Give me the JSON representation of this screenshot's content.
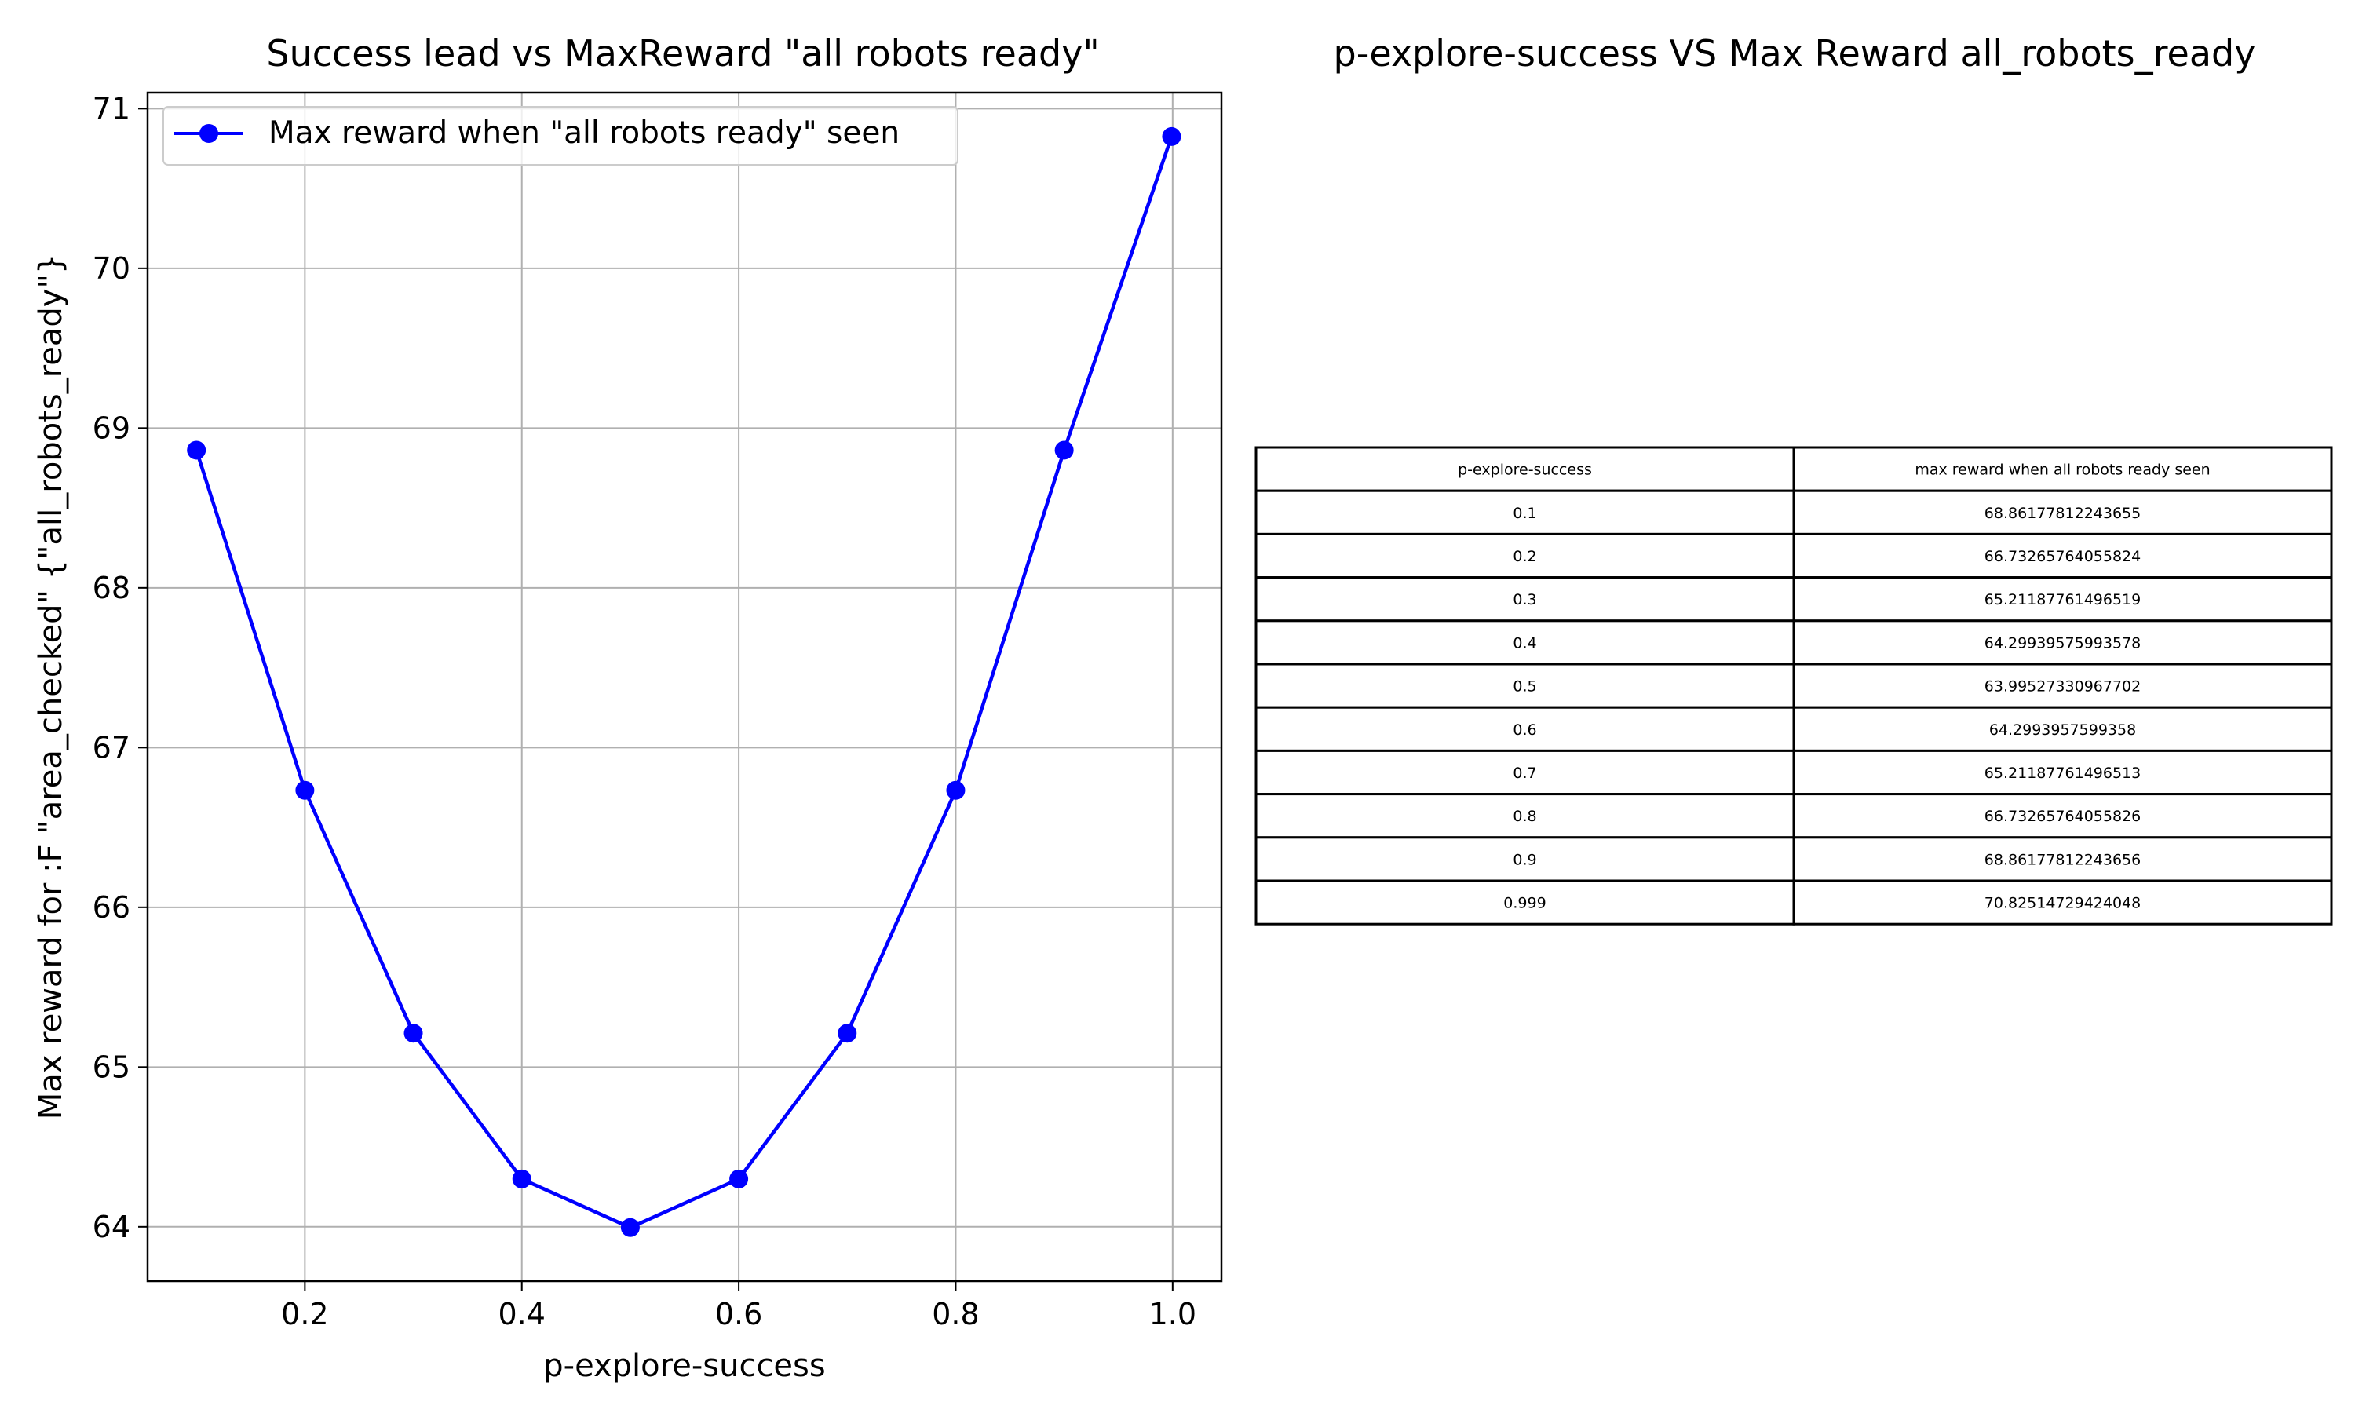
{
  "chart_data": [
    {
      "type": "line",
      "title": "Success lead vs MaxReward \"all robots ready\"",
      "xlabel": "p-explore-success",
      "ylabel": "Max reward for :F \"area_checked\" {\"all_robots_ready\"}",
      "xlim": [
        0.055,
        1.045
      ],
      "ylim": [
        63.66,
        71.1
      ],
      "xticks": [
        0.2,
        0.4,
        0.6,
        0.8,
        1.0
      ],
      "xtick_labels": [
        "0.2",
        "0.4",
        "0.6",
        "0.8",
        "1.0"
      ],
      "yticks": [
        64,
        65,
        66,
        67,
        68,
        69,
        70,
        71
      ],
      "ytick_labels": [
        "64",
        "65",
        "66",
        "67",
        "68",
        "69",
        "70",
        "71"
      ],
      "grid": true,
      "legend_position": "top-left",
      "x": [
        0.1,
        0.2,
        0.3,
        0.4,
        0.5,
        0.6,
        0.7,
        0.8,
        0.9,
        0.999
      ],
      "series": [
        {
          "name": "Max reward when \"all robots ready\" seen",
          "color": "#0000ff",
          "marker": "circle",
          "values": [
            68.86177812243655,
            66.73265764055824,
            65.21187761496519,
            64.29939575993578,
            63.99527330967702,
            64.2993957599358,
            65.21187761496513,
            66.73265764055826,
            68.86177812243656,
            70.82514729424048
          ]
        }
      ]
    },
    {
      "type": "table",
      "title": "p-explore-success VS Max Reward all_robots_ready",
      "columns": [
        "p-explore-success",
        "max reward when all robots ready seen"
      ],
      "rows": [
        [
          "0.1",
          "68.86177812243655"
        ],
        [
          "0.2",
          "66.73265764055824"
        ],
        [
          "0.3",
          "65.21187761496519"
        ],
        [
          "0.4",
          "64.29939575993578"
        ],
        [
          "0.5",
          "63.99527330967702"
        ],
        [
          "0.6",
          "64.2993957599358"
        ],
        [
          "0.7",
          "65.21187761496513"
        ],
        [
          "0.8",
          "66.73265764055826"
        ],
        [
          "0.9",
          "68.86177812243656"
        ],
        [
          "0.999",
          "70.82514729424048"
        ]
      ]
    }
  ]
}
